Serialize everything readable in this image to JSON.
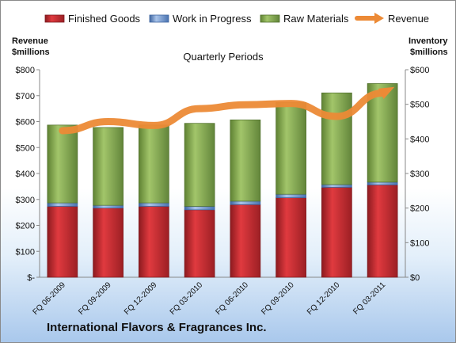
{
  "company": "International Flavors & Fragrances Inc.",
  "chart_data": {
    "type": "bar",
    "stacked": true,
    "title": "Quarterly Periods",
    "ylabel_left": "Revenue\n$millions",
    "ylabel_right": "Inventory\n$millions",
    "categories": [
      "FQ 06-2009",
      "FQ 09-2009",
      "FQ 12-2009",
      "FQ 03-2010",
      "FQ 06-2010",
      "FQ 09-2010",
      "FQ 12-2010",
      "FQ 03-2011"
    ],
    "left_axis": {
      "min": 0,
      "max": 800,
      "step": 100,
      "ticks": [
        "$-",
        "$100",
        "$200",
        "$300",
        "$400",
        "$500",
        "$600",
        "$700",
        "$800"
      ]
    },
    "right_axis": {
      "min": 0,
      "max": 600,
      "step": 100,
      "ticks": [
        "$0",
        "$100",
        "$200",
        "$300",
        "$400",
        "$500",
        "$600"
      ]
    },
    "series": [
      {
        "name": "Finished Goods",
        "type": "bar",
        "axis": "right",
        "color": "#c0272d",
        "values": [
          205,
          200,
          205,
          195,
          210,
          230,
          260,
          267
        ]
      },
      {
        "name": "Work in Progress",
        "type": "bar",
        "axis": "right",
        "color": "#5b86c5",
        "values": [
          10,
          8,
          10,
          10,
          10,
          10,
          8,
          8
        ]
      },
      {
        "name": "Raw Materials",
        "type": "bar",
        "axis": "right",
        "color": "#7aa142",
        "values": [
          225,
          225,
          225,
          240,
          235,
          265,
          265,
          285
        ]
      },
      {
        "name": "Revenue",
        "type": "line",
        "axis": "left",
        "color": "#ec8a36",
        "values": [
          565,
          600,
          585,
          650,
          665,
          670,
          620,
          710
        ]
      }
    ],
    "legend_position": "top",
    "grid": false
  }
}
